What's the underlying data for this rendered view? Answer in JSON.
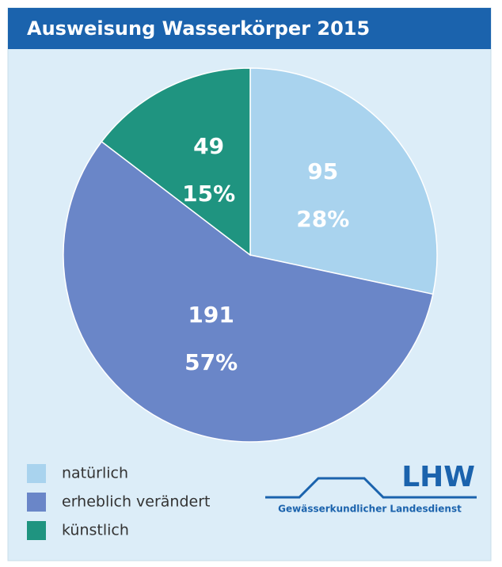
{
  "chart_data": {
    "type": "pie",
    "title": "Ausweisung Wasserkörper 2015",
    "categories": [
      "natürlich",
      "erheblich verändert",
      "künstlich"
    ],
    "values": [
      95,
      191,
      49
    ],
    "value_labels": [
      "28%",
      "57%",
      "15%"
    ],
    "colors": [
      "#a9d3ee",
      "#6a86c8",
      "#1f9480"
    ],
    "legend": "bottom-left",
    "logo": {
      "name": "LHW",
      "subtitle": "Gewässerkundlicher Landesdienst"
    }
  }
}
